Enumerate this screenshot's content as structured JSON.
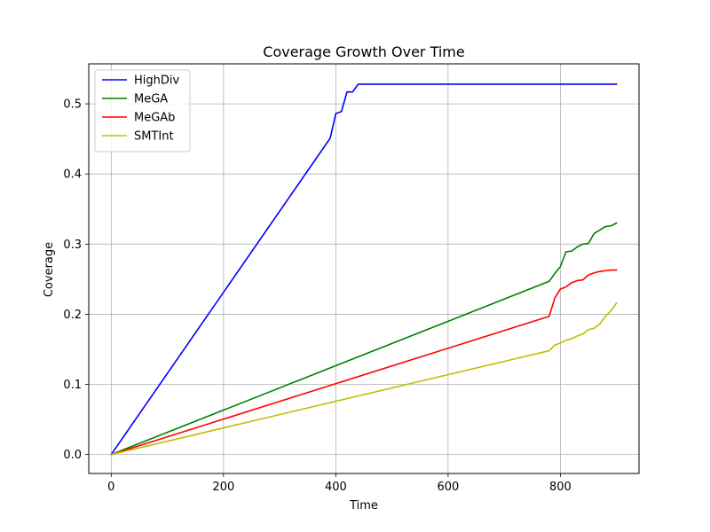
{
  "chart_data": {
    "type": "line",
    "title": "Coverage Growth Over Time",
    "xlabel": "Time",
    "ylabel": "Coverage",
    "xlim": [
      -40,
      940
    ],
    "ylim": [
      -0.027,
      0.557
    ],
    "xticks": [
      0,
      200,
      400,
      600,
      800
    ],
    "xtick_labels": [
      "0",
      "200",
      "400",
      "600",
      "800"
    ],
    "yticks": [
      0.0,
      0.1,
      0.2,
      0.3,
      0.4,
      0.5
    ],
    "ytick_labels": [
      "0.0",
      "0.1",
      "0.2",
      "0.3",
      "0.4",
      "0.5"
    ],
    "grid": true,
    "legend_position": "upper-left",
    "series": [
      {
        "name": "HighDiv",
        "color": "#0000ff",
        "points": [
          [
            0,
            0.0
          ],
          [
            390,
            0.451
          ],
          [
            400,
            0.486
          ],
          [
            410,
            0.489
          ],
          [
            420,
            0.517
          ],
          [
            430,
            0.517
          ],
          [
            440,
            0.528
          ],
          [
            900,
            0.528
          ]
        ]
      },
      {
        "name": "MeGA",
        "color": "#008000",
        "points": [
          [
            0,
            0.0
          ],
          [
            780,
            0.247
          ],
          [
            790,
            0.258
          ],
          [
            800,
            0.268
          ],
          [
            810,
            0.289
          ],
          [
            820,
            0.29
          ],
          [
            830,
            0.296
          ],
          [
            840,
            0.3
          ],
          [
            850,
            0.301
          ],
          [
            860,
            0.315
          ],
          [
            870,
            0.32
          ],
          [
            880,
            0.325
          ],
          [
            890,
            0.326
          ],
          [
            900,
            0.33
          ]
        ]
      },
      {
        "name": "MeGAb",
        "color": "#ff0000",
        "points": [
          [
            0,
            0.0
          ],
          [
            780,
            0.197
          ],
          [
            790,
            0.223
          ],
          [
            800,
            0.236
          ],
          [
            810,
            0.239
          ],
          [
            820,
            0.245
          ],
          [
            830,
            0.248
          ],
          [
            840,
            0.249
          ],
          [
            850,
            0.256
          ],
          [
            860,
            0.259
          ],
          [
            870,
            0.261
          ],
          [
            880,
            0.262
          ],
          [
            890,
            0.263
          ],
          [
            900,
            0.263
          ]
        ]
      },
      {
        "name": "SMTInt",
        "color": "#bfbf00",
        "points": [
          [
            0,
            0.0
          ],
          [
            780,
            0.148
          ],
          [
            790,
            0.156
          ],
          [
            800,
            0.159
          ],
          [
            810,
            0.163
          ],
          [
            820,
            0.165
          ],
          [
            830,
            0.169
          ],
          [
            840,
            0.172
          ],
          [
            850,
            0.178
          ],
          [
            860,
            0.18
          ],
          [
            870,
            0.186
          ],
          [
            880,
            0.197
          ],
          [
            890,
            0.205
          ],
          [
            900,
            0.216
          ]
        ]
      }
    ]
  }
}
